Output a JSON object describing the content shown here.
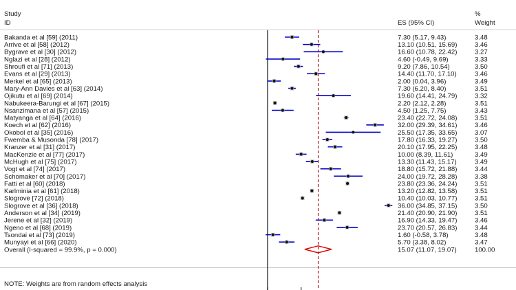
{
  "chart_data": {
    "type": "forest",
    "header": {
      "study_line1": "Study",
      "study_line2": "ID",
      "es_header": "ES (95% CI)",
      "weight_line1": "%",
      "weight_line2": "Weight"
    },
    "studies": [
      {
        "label": "Bakanda et al [59] (2011)",
        "es": 7.3,
        "lo": 5.17,
        "hi": 9.43,
        "es_text": "7.30 (5.17, 9.43)",
        "weight": "3.48"
      },
      {
        "label": "Arrive  et al [58] (2012)",
        "es": 13.1,
        "lo": 10.51,
        "hi": 15.69,
        "es_text": "13.10 (10.51, 15.69)",
        "weight": "3.46"
      },
      {
        "label": "Bygrave et al [30] (2012)",
        "es": 16.6,
        "lo": 10.78,
        "hi": 22.42,
        "es_text": "16.60 (10.78, 22.42)",
        "weight": "3.27"
      },
      {
        "label": "Nglazi et al [28] (2012)",
        "es": 4.6,
        "lo": -0.49,
        "hi": 9.69,
        "es_text": "4.60 (-0.49, 9.69)",
        "weight": "3.33"
      },
      {
        "label": "Shroufi et al [71] (2013)",
        "es": 9.2,
        "lo": 7.86,
        "hi": 10.54,
        "es_text": "9.20 (7.86, 10.54)",
        "weight": "3.50"
      },
      {
        "label": "Evans et al [29] (2013)",
        "es": 14.4,
        "lo": 11.7,
        "hi": 17.1,
        "es_text": "14.40 (11.70, 17.10)",
        "weight": "3.46"
      },
      {
        "label": "Merkel et al [65] (2013)",
        "es": 2.0,
        "lo": 0.04,
        "hi": 3.96,
        "es_text": "2.00 (0.04, 3.96)",
        "weight": "3.49"
      },
      {
        "label": "Mary-Ann Davies et al [63] (2014)",
        "es": 7.3,
        "lo": 6.2,
        "hi": 8.4,
        "es_text": "7.30 (6.20, 8.40)",
        "weight": "3.51"
      },
      {
        "label": "Ojikutu et al [69] (2014)",
        "es": 19.6,
        "lo": 14.41,
        "hi": 24.79,
        "es_text": "19.60 (14.41, 24.79)",
        "weight": "3.32"
      },
      {
        "label": "Nabukeera-Barungi et al [67] (2015)",
        "es": 2.2,
        "lo": 2.12,
        "hi": 2.28,
        "es_text": "2.20 (2.12, 2.28)",
        "weight": "3.51"
      },
      {
        "label": "Nsanzimana et al [57] (2015)",
        "es": 4.5,
        "lo": 1.25,
        "hi": 7.75,
        "es_text": "4.50 (1.25, 7.75)",
        "weight": "3.43"
      },
      {
        "label": "Matyanga et al [64] (2016)",
        "es": 23.4,
        "lo": 22.72,
        "hi": 24.08,
        "es_text": "23.40 (22.72, 24.08)",
        "weight": "3.51"
      },
      {
        "label": "Koech et al [62] (2016)",
        "es": 32.0,
        "lo": 29.39,
        "hi": 34.61,
        "es_text": "32.00 (29.39, 34.61)",
        "weight": "3.46"
      },
      {
        "label": "Okobol et al [35] (2016)",
        "es": 25.5,
        "lo": 17.35,
        "hi": 33.65,
        "es_text": "25.50 (17.35, 33.65)",
        "weight": "3.07"
      },
      {
        "label": "Fwemba & Musonda [78] (2017)",
        "es": 17.8,
        "lo": 16.33,
        "hi": 19.27,
        "es_text": "17.80 (16.33, 19.27)",
        "weight": "3.50"
      },
      {
        "label": "Kranzer et al [31] (2017)",
        "es": 20.1,
        "lo": 17.95,
        "hi": 22.25,
        "es_text": "20.10 (17.95, 22.25)",
        "weight": "3.48"
      },
      {
        "label": "MacKenzie et al [77] (2017)",
        "es": 10.0,
        "lo": 8.39,
        "hi": 11.61,
        "es_text": "10.00 (8.39, 11.61)",
        "weight": "3.49"
      },
      {
        "label": "McHugh et al [75]  (2017)",
        "es": 13.3,
        "lo": 11.43,
        "hi": 15.17,
        "es_text": "13.30 (11.43, 15.17)",
        "weight": "3.49"
      },
      {
        "label": "Vogt et al [74] (2017)",
        "es": 18.8,
        "lo": 15.72,
        "hi": 21.88,
        "es_text": "18.80 (15.72, 21.88)",
        "weight": "3.44"
      },
      {
        "label": "Schomaker et al [70] (2017)",
        "es": 24.0,
        "lo": 19.72,
        "hi": 28.28,
        "es_text": "24.00 (19.72, 28.28)",
        "weight": "3.38"
      },
      {
        "label": "Fatti et al [60] (2018)",
        "es": 23.8,
        "lo": 23.36,
        "hi": 24.24,
        "es_text": "23.80 (23.36, 24.24)",
        "weight": "3.51"
      },
      {
        "label": "Karlminia et al [61] (2018)",
        "es": 13.2,
        "lo": 12.82,
        "hi": 13.58,
        "es_text": "13.20 (12.82, 13.58)",
        "weight": "3.51"
      },
      {
        "label": "Slogrove [72] (2018)",
        "es": 10.4,
        "lo": 10.03,
        "hi": 10.77,
        "es_text": "10.40 (10.03, 10.77)",
        "weight": "3.51"
      },
      {
        "label": "Slogrove et al [36] (2018)",
        "es": 36.0,
        "lo": 34.85,
        "hi": 37.15,
        "es_text": "36.00 (34.85, 37.15)",
        "weight": "3.50"
      },
      {
        "label": "Anderson et al [34] (2019)",
        "es": 21.4,
        "lo": 20.9,
        "hi": 21.9,
        "es_text": "21.40 (20.90, 21.90)",
        "weight": "3.51"
      },
      {
        "label": "Jerene et al [32] (2019)",
        "es": 16.9,
        "lo": 14.33,
        "hi": 19.47,
        "es_text": "16.90 (14.33, 19.47)",
        "weight": "3.46"
      },
      {
        "label": "Ngeno et al [68] (2019)",
        "es": 23.7,
        "lo": 20.57,
        "hi": 26.83,
        "es_text": "23.70 (20.57, 26.83)",
        "weight": "3.44"
      },
      {
        "label": "Tsondai et al [73] (2019)",
        "es": 1.6,
        "lo": -0.58,
        "hi": 3.78,
        "es_text": "1.60 (-0.58, 3.78)",
        "weight": "3.48"
      },
      {
        "label": "Munyayi et al [66] (2020)",
        "es": 5.7,
        "lo": 3.38,
        "hi": 8.02,
        "es_text": "5.70 (3.38, 8.02)",
        "weight": "3.47"
      }
    ],
    "overall": {
      "label": "Overall  (I-squared = 99.9%, p = 0.000)",
      "es": 15.07,
      "lo": 11.07,
      "hi": 19.07,
      "es_text": "15.07 (11.07, 19.07)",
      "weight": "100.00"
    },
    "note": "NOTE: Weights are from random effects analysis",
    "x_range": [
      -1.2,
      37.5
    ],
    "null_line": 0,
    "colors": {
      "ci": "#0000cc",
      "box": "#bdbdbd",
      "point": "#111111",
      "overall_line": "#a00000",
      "diamond": "#dd0000",
      "axis": "#000000"
    }
  }
}
